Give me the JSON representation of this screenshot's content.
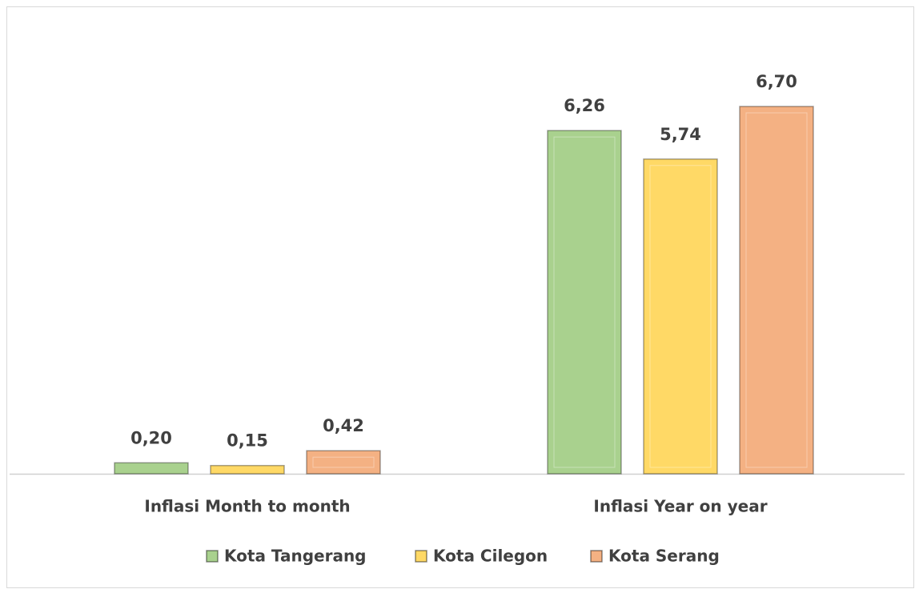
{
  "chart_data": {
    "type": "bar",
    "categories": [
      "Inflasi Month to month",
      "Inflasi Year on year"
    ],
    "series": [
      {
        "name": "Kota Tangerang",
        "color": "#a9d18e",
        "values": [
          0.2,
          6.26
        ],
        "value_labels": [
          "0,20",
          "6,26"
        ]
      },
      {
        "name": "Kota Cilegon",
        "color": "#ffd966",
        "values": [
          0.15,
          5.74
        ],
        "value_labels": [
          "0,15",
          "5,74"
        ]
      },
      {
        "name": "Kota Serang",
        "color": "#f4b183",
        "values": [
          0.42,
          6.7
        ],
        "value_labels": [
          "0,42",
          "6,70"
        ]
      }
    ],
    "legend": "bottom"
  }
}
